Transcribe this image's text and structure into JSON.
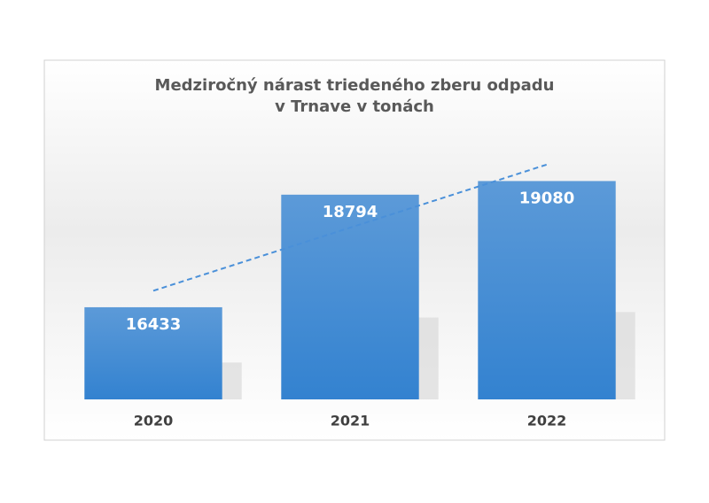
{
  "chart_data": {
    "type": "bar",
    "title": "Medziročný nárast triedeného zberu odpadu",
    "subtitle": "v Trnave v tonách",
    "categories": [
      "2020",
      "2021",
      "2022"
    ],
    "values": [
      16433,
      18794,
      19080
    ],
    "color": "#3f8ad6",
    "ylim": [
      14500,
      20500
    ],
    "trendline": true,
    "grid": false
  }
}
